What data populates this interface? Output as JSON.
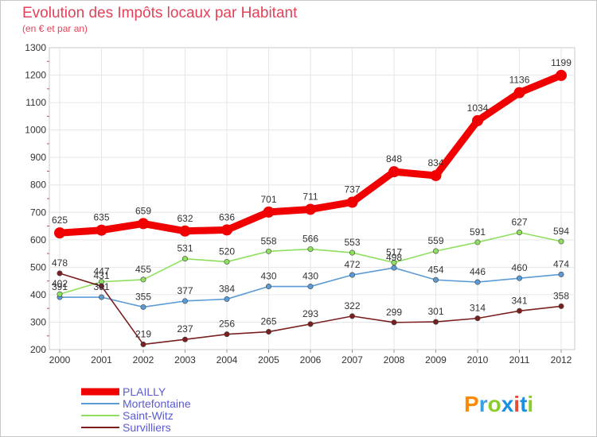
{
  "chart_data": {
    "type": "line",
    "title": "Evolution des Impôts locaux par Habitant",
    "subtitle": "(en € et par an)",
    "x": [
      "2000",
      "2001",
      "2002",
      "2003",
      "2004",
      "2005",
      "2006",
      "2007",
      "2008",
      "2009",
      "2010",
      "2011",
      "2012"
    ],
    "ylim": [
      200,
      1300
    ],
    "yticks": [
      200,
      300,
      400,
      500,
      600,
      700,
      800,
      900,
      1000,
      1100,
      1200,
      1300
    ],
    "grid": true,
    "legend_position": "bottom-left",
    "series": [
      {
        "name": "PLAILLY",
        "color": "#f00000",
        "emphasis": true,
        "values": [
          625,
          635,
          659,
          632,
          636,
          701,
          711,
          737,
          848,
          834,
          1034,
          1136,
          1199
        ]
      },
      {
        "name": "Mortefontaine",
        "color": "#5b9bd5",
        "emphasis": false,
        "values": [
          391,
          391,
          355,
          377,
          384,
          430,
          430,
          472,
          498,
          454,
          446,
          460,
          474
        ]
      },
      {
        "name": "Saint-Witz",
        "color": "#8fdf5f",
        "emphasis": false,
        "values": [
          402,
          447,
          455,
          531,
          520,
          558,
          566,
          553,
          517,
          559,
          591,
          627,
          594
        ]
      },
      {
        "name": "Survilliers",
        "color": "#7a1f1f",
        "emphasis": false,
        "values": [
          478,
          431,
          219,
          237,
          256,
          265,
          293,
          322,
          299,
          301,
          314,
          341,
          358
        ]
      }
    ]
  },
  "brand": {
    "name": "Proxiti",
    "letters": [
      "P",
      "r",
      "o",
      "x",
      "i",
      "t",
      "i"
    ],
    "colors": [
      "#ff8a00",
      "#3aa0e0",
      "#8acd2a",
      "#1c8fe0",
      "#e84a3a",
      "#1c8fe0",
      "#8acd2a"
    ]
  }
}
